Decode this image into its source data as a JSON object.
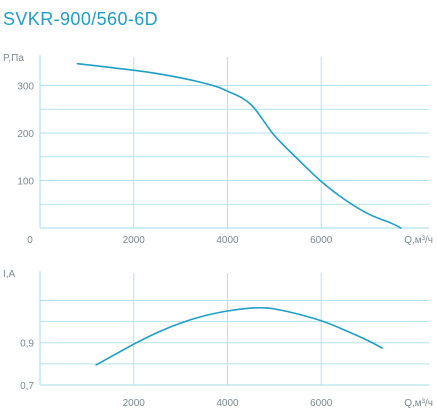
{
  "colors": {
    "accent": "#1f9fc6",
    "grid": "#b3e2ee",
    "text": "#7c8a90"
  },
  "chart_data": [
    {
      "type": "line",
      "title": "SVKR-900/560-6D",
      "xlabel": "Q,м³/ч",
      "ylabel": "P,Па",
      "xlim": [
        0,
        8300
      ],
      "ylim": [
        0,
        360
      ],
      "x_ticks": [
        0,
        2000,
        4000,
        6000
      ],
      "x_tick_labels": [
        "0",
        "2000",
        "4000",
        "6000"
      ],
      "y_ticks": [
        100,
        200,
        300
      ],
      "y_tick_labels": [
        "100",
        "200",
        "300"
      ],
      "grid": true,
      "series": [
        {
          "x": [
            800,
            1500,
            2500,
            3500,
            4000,
            4500,
            5000,
            5500,
            6000,
            6500,
            7000,
            7500,
            7700
          ],
          "values": [
            346,
            338,
            325,
            305,
            288,
            260,
            195,
            145,
            98,
            60,
            30,
            10,
            0
          ]
        }
      ]
    },
    {
      "type": "line",
      "xlabel": "Q,м³/ч",
      "ylabel": "I,A",
      "xlim": [
        0,
        8300
      ],
      "ylim": [
        0.7,
        1.23
      ],
      "x_ticks": [
        2000,
        4000,
        6000
      ],
      "x_tick_labels": [
        "2000",
        "4000",
        "6000"
      ],
      "y_ticks": [
        0.7,
        0.9
      ],
      "y_tick_labels": [
        "0,7",
        "0,9"
      ],
      "grid": true,
      "series": [
        {
          "x": [
            1200,
            2000,
            2500,
            3000,
            3500,
            4000,
            4500,
            4800,
            5000,
            5500,
            6000,
            6500,
            7000,
            7300
          ],
          "values": [
            0.795,
            0.893,
            0.948,
            0.993,
            1.027,
            1.05,
            1.064,
            1.065,
            1.06,
            1.036,
            1.004,
            0.96,
            0.91,
            0.875
          ]
        }
      ]
    }
  ]
}
